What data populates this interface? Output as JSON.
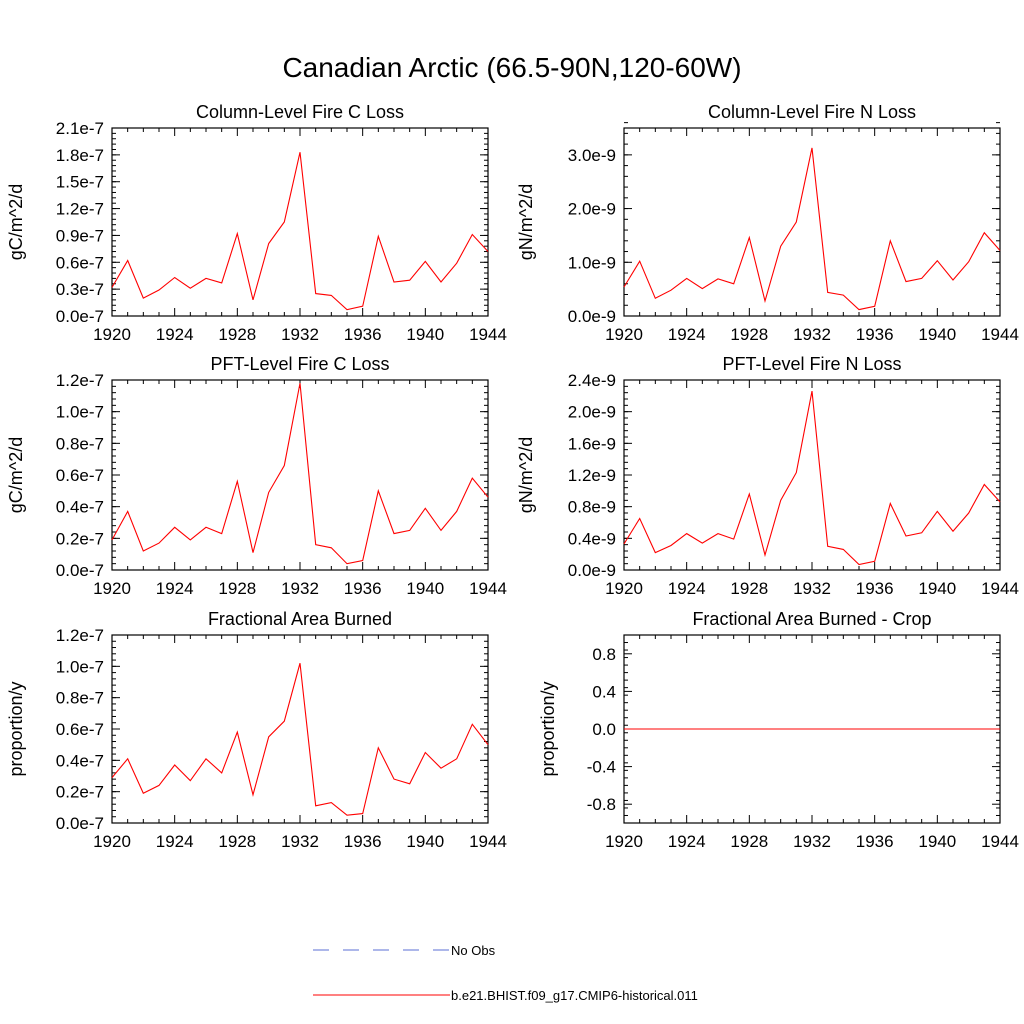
{
  "page_title": "Canadian Arctic (66.5-90N,120-60W)",
  "chart_data": [
    {
      "type": "line",
      "title": "Column-Level Fire C Loss",
      "ylabel": "gC/m^2/d",
      "xlabel": "",
      "x": [
        1920,
        1921,
        1922,
        1923,
        1924,
        1925,
        1926,
        1927,
        1928,
        1929,
        1930,
        1931,
        1932,
        1933,
        1934,
        1935,
        1936,
        1937,
        1938,
        1939,
        1940,
        1941,
        1942,
        1943,
        1944
      ],
      "xlim": [
        1920,
        1944
      ],
      "xticks": [
        1920,
        1924,
        1928,
        1932,
        1936,
        1940,
        1944
      ],
      "xtick_labels": [
        "1920",
        "1924",
        "1928",
        "1932",
        "1936",
        "1940",
        "1944"
      ],
      "ylim": [
        0,
        2.1e-07
      ],
      "yticks": [
        0,
        3e-08,
        6e-08,
        9e-08,
        1.2e-07,
        1.5e-07,
        1.8e-07,
        2.1e-07
      ],
      "ytick_labels": [
        "0.0e-7",
        "0.3e-7",
        "0.6e-7",
        "0.9e-7",
        "1.2e-7",
        "1.5e-7",
        "1.8e-7",
        "2.1e-7"
      ],
      "series": [
        {
          "name": "b.e21.BHIST.f09_g17.CMIP6-historical.011",
          "color": "#ff0000",
          "values": [
            3.2e-08,
            6.2e-08,
            2e-08,
            2.9e-08,
            4.3e-08,
            3.1e-08,
            4.2e-08,
            3.7e-08,
            9.2e-08,
            1.8e-08,
            8.1e-08,
            1.05e-07,
            1.83e-07,
            2.5e-08,
            2.3e-08,
            7e-09,
            1.1e-08,
            8.9e-08,
            3.8e-08,
            4e-08,
            6.1e-08,
            3.8e-08,
            5.9e-08,
            9.1e-08,
            7.2e-08
          ]
        }
      ]
    },
    {
      "type": "line",
      "title": "Column-Level Fire N Loss",
      "ylabel": "gN/m^2/d",
      "xlabel": "",
      "x": [
        1920,
        1921,
        1922,
        1923,
        1924,
        1925,
        1926,
        1927,
        1928,
        1929,
        1930,
        1931,
        1932,
        1933,
        1934,
        1935,
        1936,
        1937,
        1938,
        1939,
        1940,
        1941,
        1942,
        1943,
        1944
      ],
      "xlim": [
        1920,
        1944
      ],
      "xticks": [
        1920,
        1924,
        1928,
        1932,
        1936,
        1940,
        1944
      ],
      "xtick_labels": [
        "1920",
        "1924",
        "1928",
        "1932",
        "1936",
        "1940",
        "1944"
      ],
      "ylim": [
        0,
        3.5e-09
      ],
      "yticks": [
        0,
        1e-09,
        2e-09,
        3e-09
      ],
      "ytick_labels": [
        "0.0e-9",
        "1.0e-9",
        "2.0e-9",
        "3.0e-9"
      ],
      "series": [
        {
          "name": "b.e21.BHIST.f09_g17.CMIP6-historical.011",
          "color": "#ff0000",
          "values": [
            5.4e-10,
            1.02e-09,
            3.3e-10,
            4.8e-10,
            7e-10,
            5.1e-10,
            6.9e-10,
            6e-10,
            1.46e-09,
            2.8e-10,
            1.3e-09,
            1.75e-09,
            3.13e-09,
            4.4e-10,
            3.9e-10,
            1.2e-10,
            1.8e-10,
            1.4e-09,
            6.4e-10,
            7e-10,
            1.03e-09,
            6.7e-10,
            1.01e-09,
            1.55e-09,
            1.22e-09
          ]
        }
      ]
    },
    {
      "type": "line",
      "title": "PFT-Level Fire C Loss",
      "ylabel": "gC/m^2/d",
      "xlabel": "",
      "x": [
        1920,
        1921,
        1922,
        1923,
        1924,
        1925,
        1926,
        1927,
        1928,
        1929,
        1930,
        1931,
        1932,
        1933,
        1934,
        1935,
        1936,
        1937,
        1938,
        1939,
        1940,
        1941,
        1942,
        1943,
        1944
      ],
      "xlim": [
        1920,
        1944
      ],
      "xticks": [
        1920,
        1924,
        1928,
        1932,
        1936,
        1940,
        1944
      ],
      "xtick_labels": [
        "1920",
        "1924",
        "1928",
        "1932",
        "1936",
        "1940",
        "1944"
      ],
      "ylim": [
        0,
        1.2e-07
      ],
      "yticks": [
        0,
        2e-08,
        4e-08,
        6e-08,
        8e-08,
        1e-07,
        1.2e-07
      ],
      "ytick_labels": [
        "0.0e-7",
        "0.2e-7",
        "0.4e-7",
        "0.6e-7",
        "0.8e-7",
        "1.0e-7",
        "1.2e-7"
      ],
      "series": [
        {
          "name": "b.e21.BHIST.f09_g17.CMIP6-historical.011",
          "color": "#ff0000",
          "values": [
            1.9e-08,
            3.7e-08,
            1.2e-08,
            1.7e-08,
            2.7e-08,
            1.9e-08,
            2.7e-08,
            2.3e-08,
            5.6e-08,
            1.1e-08,
            4.9e-08,
            6.6e-08,
            1.18e-07,
            1.6e-08,
            1.4e-08,
            4e-09,
            6e-09,
            5e-08,
            2.3e-08,
            2.5e-08,
            3.9e-08,
            2.5e-08,
            3.7e-08,
            5.8e-08,
            4.6e-08
          ]
        }
      ]
    },
    {
      "type": "line",
      "title": "PFT-Level Fire N Loss",
      "ylabel": "gN/m^2/d",
      "xlabel": "",
      "x": [
        1920,
        1921,
        1922,
        1923,
        1924,
        1925,
        1926,
        1927,
        1928,
        1929,
        1930,
        1931,
        1932,
        1933,
        1934,
        1935,
        1936,
        1937,
        1938,
        1939,
        1940,
        1941,
        1942,
        1943,
        1944
      ],
      "xlim": [
        1920,
        1944
      ],
      "xticks": [
        1920,
        1924,
        1928,
        1932,
        1936,
        1940,
        1944
      ],
      "xtick_labels": [
        "1920",
        "1924",
        "1928",
        "1932",
        "1936",
        "1940",
        "1944"
      ],
      "ylim": [
        0,
        2.4e-09
      ],
      "yticks": [
        0,
        4e-10,
        8e-10,
        1.2e-09,
        1.6e-09,
        2e-09,
        2.4e-09
      ],
      "ytick_labels": [
        "0.0e-9",
        "0.4e-9",
        "0.8e-9",
        "1.2e-9",
        "1.6e-9",
        "2.0e-9",
        "2.4e-9"
      ],
      "series": [
        {
          "name": "b.e21.BHIST.f09_g17.CMIP6-historical.011",
          "color": "#ff0000",
          "values": [
            3.3e-10,
            6.5e-10,
            2.2e-10,
            3.1e-10,
            4.6e-10,
            3.4e-10,
            4.6e-10,
            3.9e-10,
            9.6e-10,
            1.9e-10,
            8.8e-10,
            1.23e-09,
            2.26e-09,
            3e-10,
            2.6e-10,
            7e-11,
            1.1e-10,
            8.4e-10,
            4.3e-10,
            4.7e-10,
            7.4e-10,
            4.9e-10,
            7.2e-10,
            1.08e-09,
            8.6e-10
          ]
        }
      ]
    },
    {
      "type": "line",
      "title": "Fractional Area Burned",
      "ylabel": "proportion/y",
      "xlabel": "",
      "x": [
        1920,
        1921,
        1922,
        1923,
        1924,
        1925,
        1926,
        1927,
        1928,
        1929,
        1930,
        1931,
        1932,
        1933,
        1934,
        1935,
        1936,
        1937,
        1938,
        1939,
        1940,
        1941,
        1942,
        1943,
        1944
      ],
      "xlim": [
        1920,
        1944
      ],
      "xticks": [
        1920,
        1924,
        1928,
        1932,
        1936,
        1940,
        1944
      ],
      "xtick_labels": [
        "1920",
        "1924",
        "1928",
        "1932",
        "1936",
        "1940",
        "1944"
      ],
      "ylim": [
        0,
        1.2e-07
      ],
      "yticks": [
        0,
        2e-08,
        4e-08,
        6e-08,
        8e-08,
        1e-07,
        1.2e-07
      ],
      "ytick_labels": [
        "0.0e-7",
        "0.2e-7",
        "0.4e-7",
        "0.6e-7",
        "0.8e-7",
        "1.0e-7",
        "1.2e-7"
      ],
      "series": [
        {
          "name": "b.e21.BHIST.f09_g17.CMIP6-historical.011",
          "color": "#ff0000",
          "values": [
            2.9e-08,
            4.1e-08,
            1.9e-08,
            2.4e-08,
            3.7e-08,
            2.7e-08,
            4.1e-08,
            3.2e-08,
            5.8e-08,
            1.8e-08,
            5.5e-08,
            6.5e-08,
            1.02e-07,
            1.1e-08,
            1.3e-08,
            5e-09,
            6e-09,
            4.8e-08,
            2.8e-08,
            2.5e-08,
            4.5e-08,
            3.5e-08,
            4.1e-08,
            6.3e-08,
            5e-08
          ]
        }
      ]
    },
    {
      "type": "line",
      "title": "Fractional Area Burned - Crop",
      "ylabel": "proportion/y",
      "xlabel": "",
      "x": [
        1920,
        1921,
        1922,
        1923,
        1924,
        1925,
        1926,
        1927,
        1928,
        1929,
        1930,
        1931,
        1932,
        1933,
        1934,
        1935,
        1936,
        1937,
        1938,
        1939,
        1940,
        1941,
        1942,
        1943,
        1944
      ],
      "xlim": [
        1920,
        1944
      ],
      "xticks": [
        1920,
        1924,
        1928,
        1932,
        1936,
        1940,
        1944
      ],
      "xtick_labels": [
        "1920",
        "1924",
        "1928",
        "1932",
        "1936",
        "1940",
        "1944"
      ],
      "ylim": [
        -1.0,
        1.0
      ],
      "yticks": [
        -0.8,
        -0.4,
        0.0,
        0.4,
        0.8
      ],
      "ytick_labels": [
        "-0.8",
        "-0.4",
        "0.0",
        "0.4",
        "0.8"
      ],
      "series": [
        {
          "name": "b.e21.BHIST.f09_g17.CMIP6-historical.011",
          "color": "#ff0000",
          "values": [
            0,
            0,
            0,
            0,
            0,
            0,
            0,
            0,
            0,
            0,
            0,
            0,
            0,
            0,
            0,
            0,
            0,
            0,
            0,
            0,
            0,
            0,
            0,
            0,
            0
          ]
        }
      ]
    }
  ],
  "legend": [
    {
      "label": "No Obs",
      "color": "#5b6fd6",
      "style": "dashed"
    },
    {
      "label": "b.e21.BHIST.f09_g17.CMIP6-historical.011",
      "color": "#ff0000",
      "style": "solid"
    }
  ]
}
